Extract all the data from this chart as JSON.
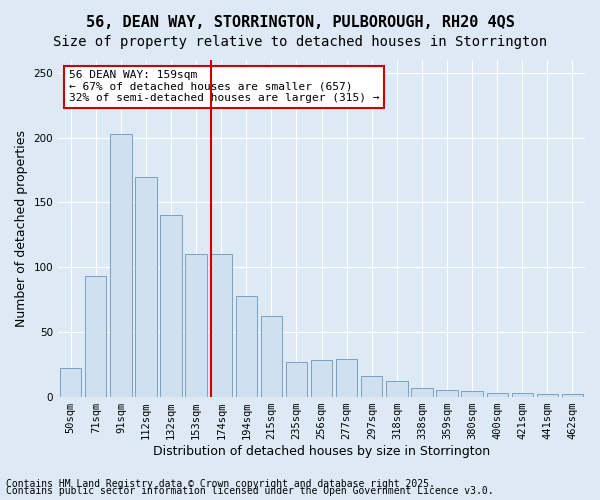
{
  "title": "56, DEAN WAY, STORRINGTON, PULBOROUGH, RH20 4QS",
  "subtitle": "Size of property relative to detached houses in Storrington",
  "xlabel": "Distribution of detached houses by size in Storrington",
  "ylabel": "Number of detached properties",
  "footnote1": "Contains HM Land Registry data © Crown copyright and database right 2025.",
  "footnote2": "Contains public sector information licensed under the Open Government Licence v3.0.",
  "bins": [
    "50sqm",
    "71sqm",
    "91sqm",
    "112sqm",
    "132sqm",
    "153sqm",
    "174sqm",
    "194sqm",
    "215sqm",
    "235sqm",
    "256sqm",
    "277sqm",
    "297sqm",
    "318sqm",
    "338sqm",
    "359sqm",
    "380sqm",
    "400sqm",
    "421sqm",
    "441sqm",
    "462sqm"
  ],
  "values": [
    22,
    93,
    203,
    170,
    140,
    110,
    110,
    78,
    62,
    27,
    28,
    29,
    16,
    12,
    7,
    5,
    4,
    3,
    3,
    2,
    2
  ],
  "bar_color": "#d0e0f0",
  "bar_edge_color": "#7aA0c0",
  "vline_x_index": 6,
  "vline_color": "#cc0000",
  "annotation_line1": "56 DEAN WAY: 159sqm",
  "annotation_line2": "← 67% of detached houses are smaller (657)",
  "annotation_line3": "32% of semi-detached houses are larger (315) →",
  "annotation_box_color": "#ffffff",
  "annotation_box_edge_color": "#cc0000",
  "ylim": [
    0,
    260
  ],
  "background_color": "#ddeaf5",
  "grid_color": "#ffffff",
  "title_fontsize": 11,
  "subtitle_fontsize": 10,
  "axis_fontsize": 9,
  "tick_fontsize": 7.5,
  "footnote_fontsize": 7
}
